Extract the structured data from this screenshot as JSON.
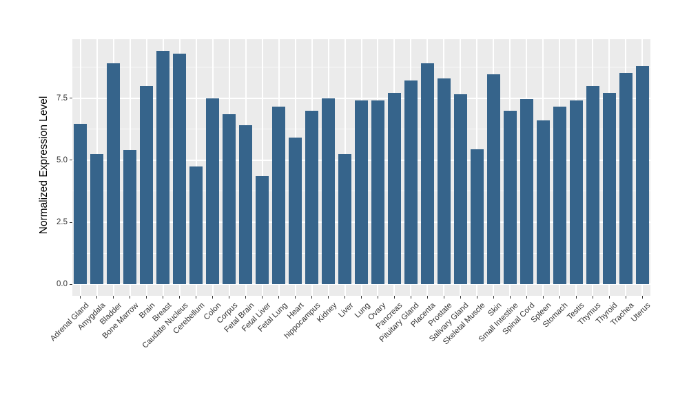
{
  "chart_data": {
    "type": "bar",
    "title": "",
    "xlabel": "",
    "ylabel": "Normalized Expression Level",
    "categories": [
      "Adrenal Gland",
      "Amygdala",
      "Bladder",
      "Bone Marrow",
      "Brain",
      "Breast",
      "Caudate Nucleus",
      "Cerebellum",
      "Colon",
      "Corpus",
      "Fetal Brain",
      "Fetal Liver",
      "Fetal Lung",
      "Heart",
      "hippocampus",
      "Kidney",
      "Liver",
      "Lung",
      "Ovary",
      "Pancreas",
      "Pituitary Gland",
      "Placenta",
      "Prostate",
      "Salivary Gland",
      "Skeletal Muscle",
      "Skin",
      "Small Intestine",
      "Spinal Cord",
      "Spleen",
      "Stomach",
      "Testis",
      "Thymus",
      "Thyroid",
      "Trachea",
      "Uterus"
    ],
    "values": [
      6.45,
      5.25,
      8.9,
      5.4,
      8.0,
      9.4,
      9.3,
      4.75,
      7.5,
      6.85,
      6.4,
      4.35,
      7.15,
      5.9,
      7.0,
      7.5,
      5.25,
      7.4,
      7.4,
      7.7,
      8.2,
      8.9,
      8.3,
      7.65,
      5.45,
      8.45,
      7.0,
      7.45,
      6.6,
      7.15,
      7.4,
      8.0,
      7.7,
      8.5,
      8.8
    ],
    "ylim": [
      0,
      9.87
    ],
    "yticks": {
      "values": [
        0.0,
        2.5,
        5.0,
        7.5
      ],
      "labels": [
        "0.0",
        "2.5",
        "5.0",
        "7.5"
      ]
    },
    "minor_gridlines": [
      1.25,
      3.75,
      6.25,
      8.75
    ],
    "grid": "horizontal major+minor white lines, vertical white line at each category center",
    "legend": "none",
    "x_label_rotation_deg": 45,
    "colors": {
      "bar": "#36648B",
      "panel_bg": "#EBEBEB",
      "grid": "#FFFFFF",
      "axis_text": "#333333",
      "axis_title": "#000000",
      "page_bg": "#FFFFFF"
    }
  }
}
